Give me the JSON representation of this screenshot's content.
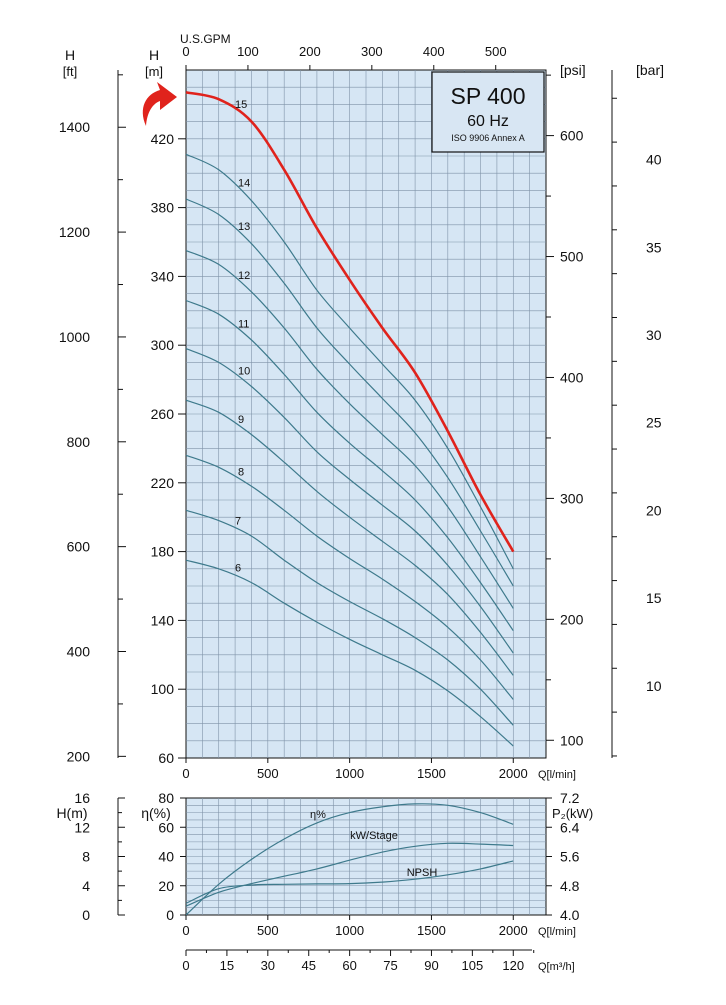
{
  "colors": {
    "plot_bg": "#d6e6f4",
    "grid": "#7f93a8",
    "curve": "#3e7a8c",
    "highlight": "#e0231c",
    "box_bg": "#d8e6f3",
    "axis": "#111111"
  },
  "chart_data": [
    {
      "type": "line",
      "title": "SP 400",
      "subtitle": "60 Hz",
      "note": "ISO 9906 Annex A",
      "xlabel": "Q[l/min]",
      "xlabel_top": "U.S.GPM",
      "ylabel": "H [m]",
      "ylabel_ft": "H [ft]",
      "ylabel_psi": "[psi]",
      "ylabel_bar": "[bar]",
      "xlim": [
        0,
        2200
      ],
      "ylim": [
        60,
        460
      ],
      "grid": true,
      "x_ticks": [
        0,
        500,
        1000,
        1500,
        2000
      ],
      "x_ticks_gpm": [
        0,
        100,
        200,
        300,
        400,
        500
      ],
      "y_ticks_m": [
        60,
        100,
        140,
        180,
        220,
        260,
        300,
        340,
        380,
        420
      ],
      "y_ticks_ft": [
        200,
        400,
        600,
        800,
        1000,
        1200,
        1400
      ],
      "y_ticks_psi": [
        100,
        200,
        300,
        400,
        500,
        600
      ],
      "y_ticks_bar": [
        10,
        15,
        20,
        25,
        30,
        35,
        40
      ],
      "x": [
        0,
        200,
        400,
        600,
        800,
        1000,
        1200,
        1400,
        1600,
        1800,
        2000
      ],
      "series": [
        {
          "name": "6",
          "values": [
            175,
            170,
            162,
            150,
            139,
            129,
            120,
            111,
            99,
            84,
            67
          ]
        },
        {
          "name": "7",
          "values": [
            204,
            198,
            189,
            175,
            162,
            151,
            141,
            130,
            117,
            100,
            79
          ]
        },
        {
          "name": "8",
          "values": [
            236,
            229,
            218,
            204,
            189,
            176,
            164,
            151,
            136,
            117,
            94
          ]
        },
        {
          "name": "9",
          "values": [
            268,
            261,
            248,
            232,
            215,
            200,
            186,
            172,
            155,
            133,
            108
          ]
        },
        {
          "name": "10",
          "values": [
            298,
            290,
            276,
            258,
            238,
            222,
            207,
            192,
            172,
            148,
            121
          ]
        },
        {
          "name": "11",
          "values": [
            326,
            318,
            303,
            283,
            261,
            243,
            227,
            210,
            188,
            162,
            134
          ]
        },
        {
          "name": "12",
          "values": [
            355,
            347,
            331,
            310,
            286,
            266,
            248,
            230,
            206,
            177,
            147
          ]
        },
        {
          "name": "13",
          "values": [
            385,
            376,
            359,
            336,
            310,
            289,
            269,
            249,
            223,
            192,
            160
          ]
        },
        {
          "name": "14",
          "values": [
            411,
            402,
            384,
            360,
            332,
            310,
            289,
            268,
            240,
            206,
            170
          ]
        },
        {
          "name": "15",
          "values": [
            447,
            443,
            430,
            402,
            368,
            338,
            310,
            284,
            250,
            213,
            180
          ],
          "highlight": true
        }
      ]
    },
    {
      "type": "line",
      "xlabel": "Q[l/min]",
      "xlabel_bottom": "Q[m³/h]",
      "xlim": [
        0,
        2200
      ],
      "grid": true,
      "x_ticks": [
        0,
        500,
        1000,
        1500,
        2000
      ],
      "x_ticks_m3h": [
        0,
        15,
        30,
        45,
        60,
        75,
        90,
        105,
        120
      ],
      "y_left_npsh": {
        "label": "H(m)",
        "ticks": [
          0,
          4,
          8,
          12,
          16
        ]
      },
      "y_left_eta": {
        "label": "η(%)",
        "ticks": [
          0,
          20,
          40,
          60,
          80
        ]
      },
      "y_right_power": {
        "label": "P₂(kW)",
        "ticks": [
          4.0,
          4.8,
          5.6,
          6.4,
          7.2
        ]
      },
      "x": [
        0,
        200,
        400,
        600,
        800,
        1000,
        1200,
        1400,
        1600,
        1800,
        2000
      ],
      "series": [
        {
          "name": "η%",
          "axis": "eta",
          "values": [
            0,
            21,
            38,
            52,
            63,
            70,
            74,
            76,
            75,
            70,
            62
          ]
        },
        {
          "name": "kW/Stage",
          "axis": "power",
          "values": [
            4.24,
            4.62,
            4.86,
            5.06,
            5.26,
            5.5,
            5.72,
            5.88,
            5.96,
            5.94,
            5.9
          ]
        },
        {
          "name": "NPSH",
          "axis": "npsh",
          "values": [
            1.6,
            3.6,
            4.1,
            4.2,
            4.25,
            4.3,
            4.5,
            4.9,
            5.5,
            6.3,
            7.4
          ]
        }
      ]
    }
  ]
}
